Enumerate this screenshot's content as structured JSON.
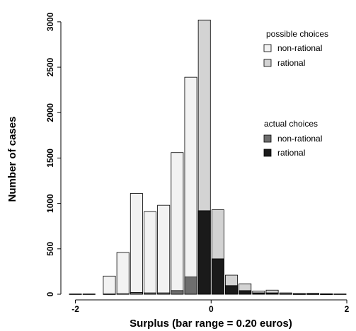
{
  "chart_data": {
    "type": "bar",
    "xlabel": "Surplus (bar range = 0.20 euros)",
    "ylabel": "Number of cases",
    "xlim": [
      -2.1,
      2.0
    ],
    "ylim": [
      0,
      3030
    ],
    "bin_width": 0.2,
    "x_ticks": [
      {
        "value": -2,
        "label": "-2"
      },
      {
        "value": 0,
        "label": "0"
      },
      {
        "value": 2,
        "label": "2"
      }
    ],
    "y_ticks": [
      {
        "value": 0,
        "label": "0"
      },
      {
        "value": 500,
        "label": "500"
      },
      {
        "value": 1000,
        "label": "1000"
      },
      {
        "value": 1500,
        "label": "1500"
      },
      {
        "value": 2000,
        "label": "2000"
      },
      {
        "value": 2500,
        "label": "2500"
      },
      {
        "value": 3000,
        "label": "3000"
      }
    ],
    "bin_centers": [
      -1.5,
      -1.3,
      -1.1,
      -0.9,
      -0.7,
      -0.5,
      -0.3,
      -0.1,
      0.1,
      0.3,
      0.5,
      0.7,
      0.9,
      1.1,
      1.3,
      1.5,
      1.7
    ],
    "possible_choices": {
      "title": "possible choices",
      "series": [
        {
          "name": "non-rational",
          "color": "#f2f2f2",
          "values": [
            200,
            460,
            1110,
            910,
            980,
            1560,
            2390,
            0,
            0,
            0,
            0,
            0,
            0,
            0,
            0,
            0,
            0
          ]
        },
        {
          "name": "rational",
          "color": "#d3d3d3",
          "values": [
            0,
            0,
            0,
            0,
            0,
            0,
            0,
            3020,
            930,
            210,
            115,
            35,
            45,
            15,
            8,
            10,
            5
          ]
        }
      ]
    },
    "actual_choices": {
      "title": "actual choices",
      "series": [
        {
          "name": "non-rational",
          "color": "#6e6e6e",
          "values": [
            3,
            5,
            20,
            15,
            15,
            40,
            190,
            0,
            0,
            0,
            0,
            0,
            0,
            0,
            0,
            0,
            0
          ]
        },
        {
          "name": "rational",
          "color": "#1a1a1a",
          "values": [
            0,
            0,
            0,
            0,
            0,
            0,
            0,
            920,
            390,
            95,
            40,
            15,
            15,
            5,
            3,
            3,
            2
          ]
        }
      ]
    },
    "edge_bin_centers": [
      -2.0,
      -1.8,
      1.9
    ],
    "edge_bin_values": [
      3,
      3,
      3
    ],
    "grid": false,
    "legend_position": "top-right"
  }
}
